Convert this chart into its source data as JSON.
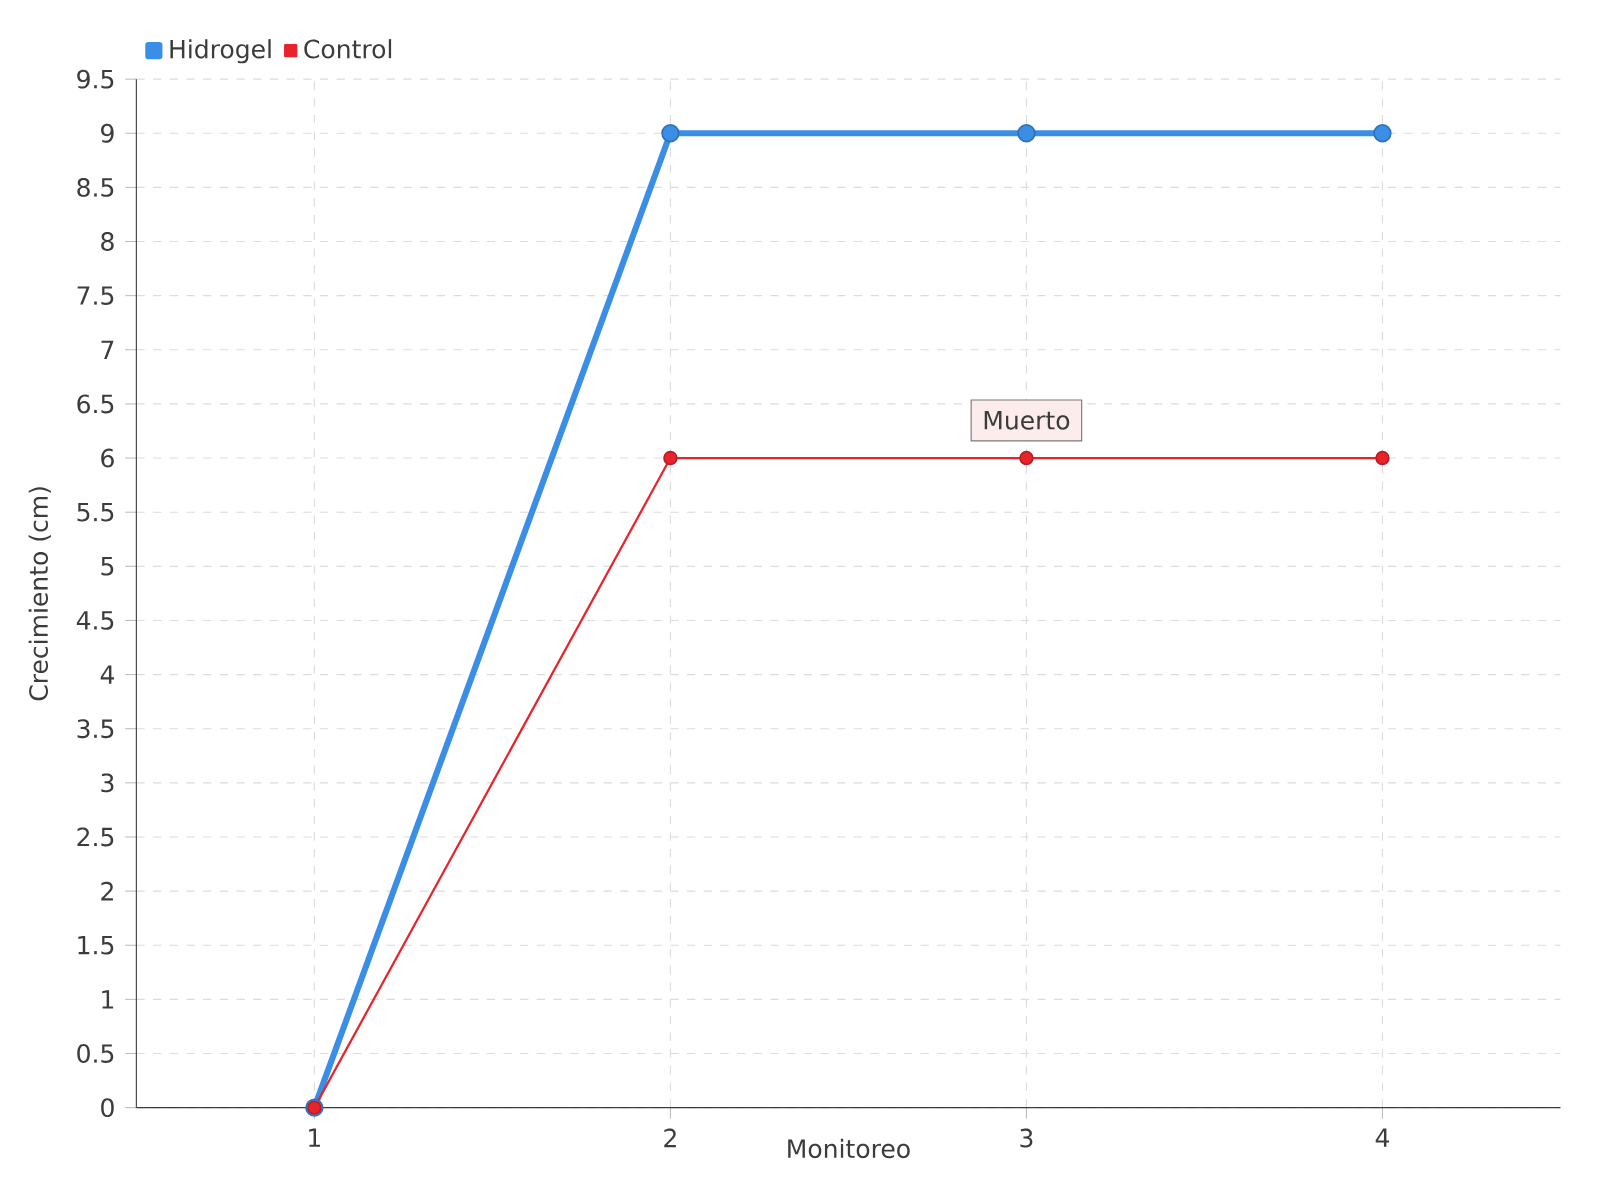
{
  "chart_data": {
    "type": "line",
    "xlabel": "Monitoreo",
    "ylabel": "Crecimiento (cm)",
    "categories": [
      "1",
      "2",
      "3",
      "4"
    ],
    "series": [
      {
        "name": "Hidrogel",
        "color": "#3a8ee6",
        "values": [
          0,
          9,
          9,
          9
        ]
      },
      {
        "name": "Control",
        "color": "#e8232c",
        "values": [
          0,
          6,
          6,
          6
        ]
      }
    ],
    "ylim": [
      0,
      9.5
    ],
    "yticks": [
      0,
      0.5,
      1,
      1.5,
      2,
      2.5,
      3,
      3.5,
      4,
      4.5,
      5,
      5.5,
      6,
      6.5,
      7,
      7.5,
      8,
      8.5,
      9,
      9.5
    ],
    "grid": true,
    "legend": "top left",
    "marker": "circle",
    "line_style": "solid",
    "annotations": [
      {
        "text": "Muerto",
        "x": "3",
        "y": 6
      }
    ]
  }
}
